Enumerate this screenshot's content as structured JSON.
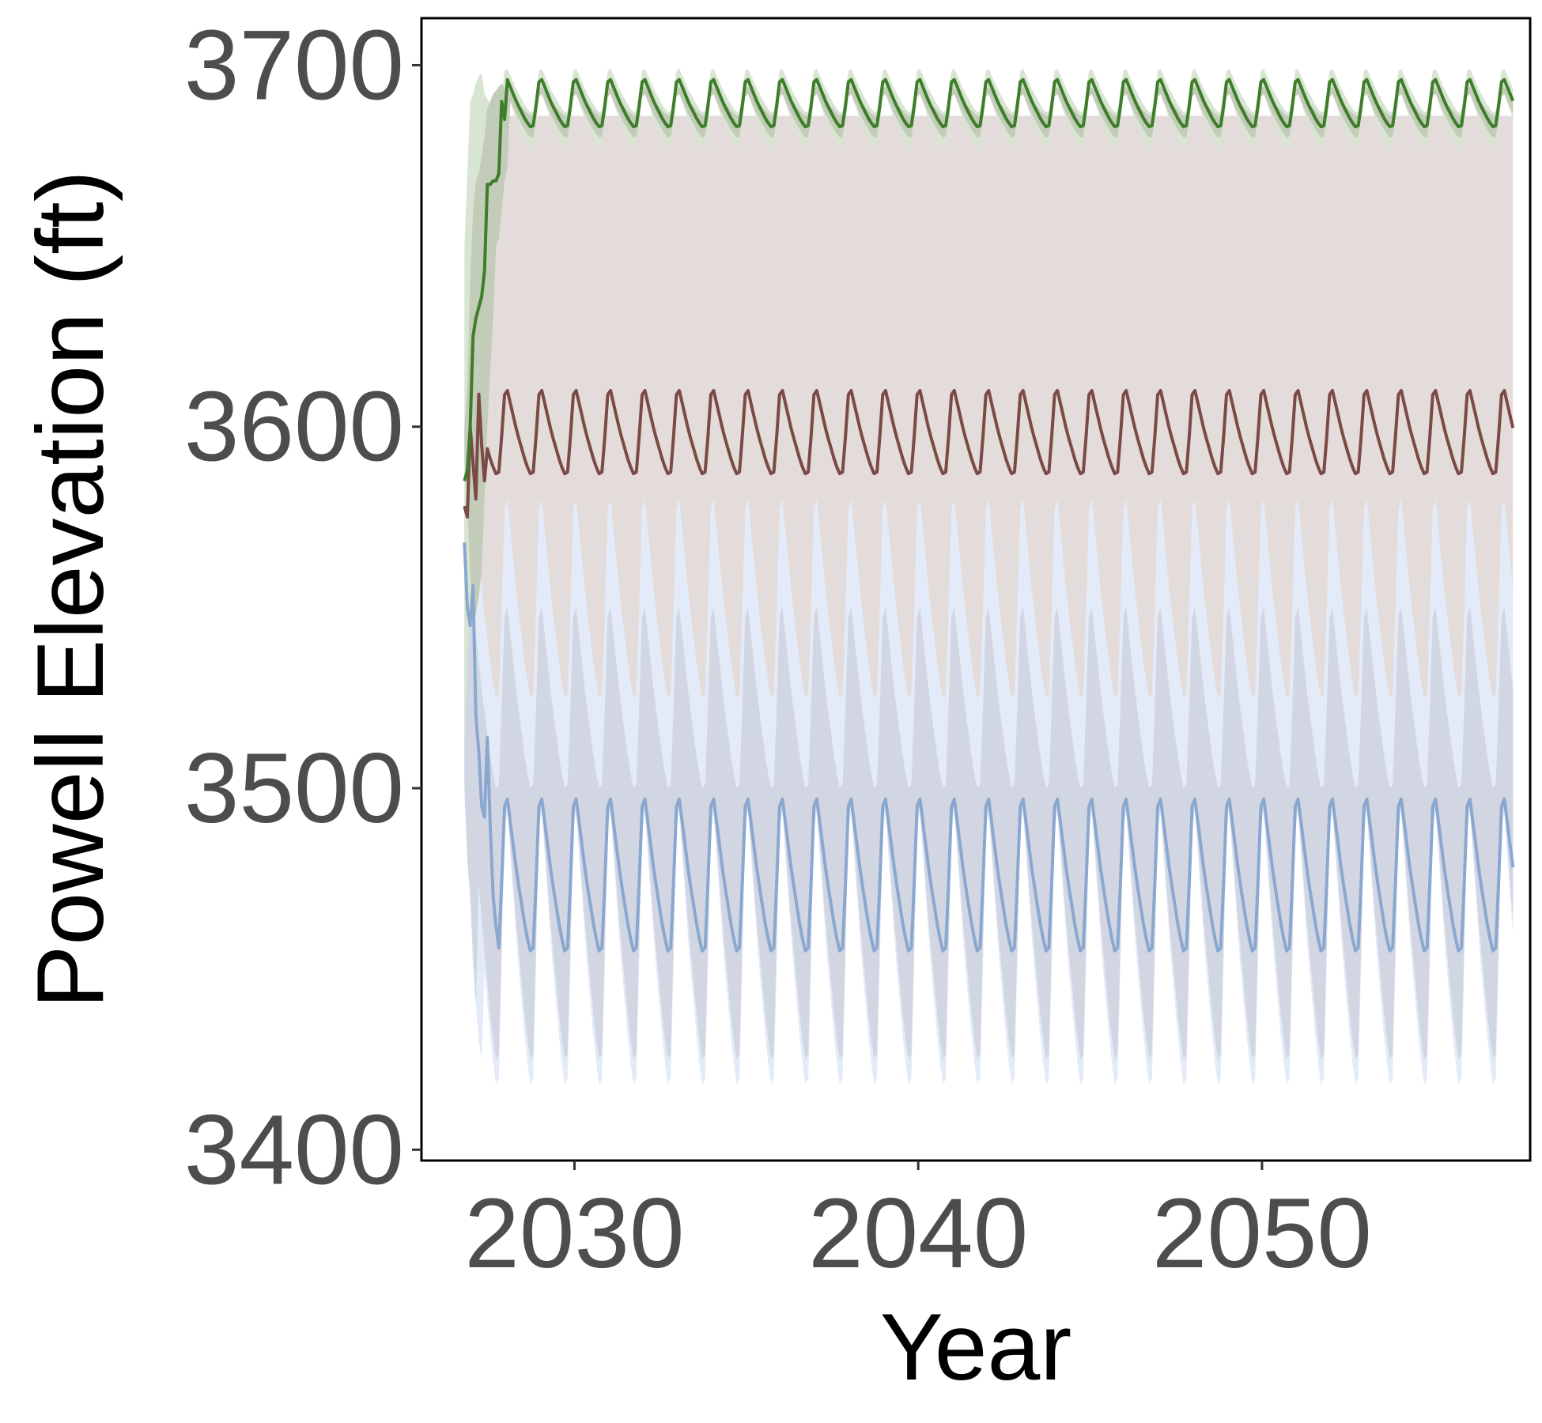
{
  "chart_data": {
    "type": "line",
    "title": "",
    "xlabel": "Year",
    "ylabel": "Powell Elevation (ft)",
    "xlim": [
      2025.55,
      2057.8
    ],
    "ylim": [
      3397,
      3713
    ],
    "x_ticks": [
      2030,
      2040,
      2050
    ],
    "y_ticks": [
      3400,
      3500,
      3600,
      3700
    ],
    "grid": false,
    "legend": "none",
    "x_start": 2026.8,
    "x_end": 2057.3,
    "series": [
      {
        "color": "#3e7d2a",
        "band_outer_color": "#d7e5d2",
        "band_inner_color": "#c3cbb9",
        "median": {
          "start": [
            3585,
            3588,
            3600,
            3625,
            3630,
            3633,
            3636,
            3643,
            3667,
            3667,
            3668,
            3668,
            3670,
            3690,
            3685
          ],
          "cycle_hi": 3696,
          "cycle_lo": 3683
        },
        "inner": {
          "hi_start": [
            3600,
            3610,
            3640,
            3660,
            3668,
            3670,
            3675,
            3680,
            3688,
            3690,
            3692,
            3693,
            3694,
            3695
          ],
          "hi": 3694,
          "lo_start": [
            3590,
            3578,
            3560,
            3548,
            3548,
            3553,
            3560,
            3580,
            3600,
            3615,
            3630,
            3650,
            3652,
            3660,
            3668,
            3672
          ],
          "lo": 3680
        },
        "outer": {
          "hi_start": [
            3650,
            3670,
            3690,
            3692,
            3695,
            3697,
            3698
          ],
          "hi": 3699,
          "lo_start": [
            3510,
            3535,
            3548,
            3555,
            3565,
            3585,
            3600,
            3620,
            3635,
            3650,
            3660,
            3666,
            3672
          ],
          "lo": 3677
        }
      },
      {
        "color": "#7b4a45",
        "band_color": "#e4dcdb",
        "median": {
          "start": [
            3578,
            3575,
            3600,
            3590,
            3580,
            3609,
            3595,
            3585
          ],
          "cycle_hi": 3610,
          "cycle_lo": 3587
        },
        "band_hi_start": [
          3580,
          3600,
          3630,
          3650,
          3660,
          3670,
          3678,
          3683
        ],
        "band_hi": 3686,
        "band_lo": 3510
      },
      {
        "color": "#8aa8cf",
        "band_outer_color": "#e2ebf7",
        "band_inner_color": "#d2d6e3",
        "median": {
          "start": [
            3568,
            3550,
            3545,
            3556,
            3520,
            3510,
            3495,
            3492,
            3514,
            3490,
            3470,
            3462
          ],
          "cycle_hi": 3497,
          "cycle_lo": 3455
        },
        "inner": {
          "hi": 3550,
          "lo": 3425,
          "hi_start": [
            3580,
            3560
          ],
          "lo_start": [
            3500,
            3480,
            3470,
            3455,
            3440
          ]
        },
        "outer": {
          "hi": 3550,
          "lo": 3418,
          "hi_start": [
            3590,
            3575
          ],
          "lo_start": [
            3498,
            3485,
            3470,
            3450,
            3440,
            3430,
            3425
          ]
        }
      }
    ]
  }
}
